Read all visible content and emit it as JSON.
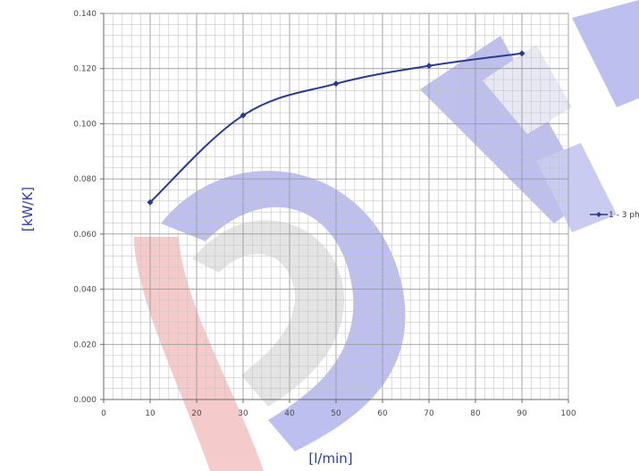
{
  "chart_data": {
    "type": "line",
    "title": "",
    "xlabel": "[l/min]",
    "ylabel": "[kW/K]",
    "xlim": [
      0,
      100
    ],
    "ylim": [
      0,
      0.14
    ],
    "x_ticks": [
      "0",
      "10",
      "20",
      "30",
      "40",
      "50",
      "60",
      "70",
      "80",
      "90",
      "100"
    ],
    "y_ticks": [
      "0.000",
      "0.020",
      "0.040",
      "0.060",
      "0.080",
      "0.100",
      "0.120",
      "0.140"
    ],
    "grid": true,
    "legend_position": "right",
    "series": [
      {
        "name": "1 - 3 ph",
        "color": "#2b3a8c",
        "points": [
          {
            "x": 10,
            "y": 0.0715
          },
          {
            "x": 30,
            "y": 0.103
          },
          {
            "x": 50,
            "y": 0.1145
          },
          {
            "x": 70,
            "y": 0.121
          },
          {
            "x": 90,
            "y": 0.1255
          }
        ]
      }
    ]
  }
}
